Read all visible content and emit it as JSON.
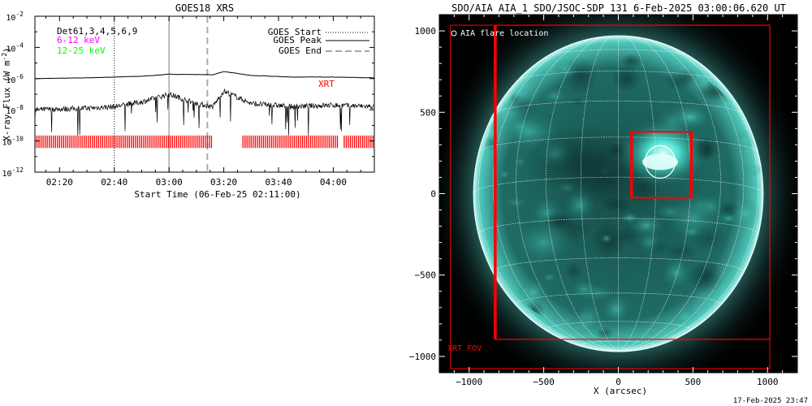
{
  "goes_panel": {
    "title": "GOES18 XRS",
    "ylabel": "X-ray Flux (W m",
    "ylabel_sup": "-2",
    "ylabel_end": ")",
    "xlabel": "Start Time (06-Feb-25 02:11:00)",
    "det_label": "Det61,3,4,5,6,9",
    "band1_label": "6-12 keV",
    "band2_label": "12-25 keV",
    "legend_start": "GOES Start",
    "legend_peak": "GOES Peak",
    "legend_end": "GOES End",
    "xrt_label": "XRT",
    "colors": {
      "band1": "#ff00ff",
      "band2": "#00ff00",
      "xrt": "#ff0000",
      "peak_line": "#aaaaaa"
    }
  },
  "aia_panel": {
    "title": "SDO/AIA AIA_1 SDO/JSOC-SDP 131  6-Feb-2025 03:00:06.620 UT",
    "legend_flare": "AIA flare location",
    "fov_label": "XRT FOV",
    "xlabel": "X (arcsec)",
    "colors": {
      "disk": "#0e3b38",
      "bright": "#33d2c4",
      "box": "#ff0000"
    }
  },
  "footer_timestamp": "17-Feb-2025 23:47",
  "chart_data": [
    {
      "type": "line",
      "title": "GOES18 XRS",
      "xlabel": "Start Time (06-Feb-25 02:11:00)",
      "ylabel": "X-ray Flux (W m-2)",
      "yscale": "log",
      "ylim_exp": [
        -12,
        -2
      ],
      "xlim_minutes_after_0200": [
        11,
        135
      ],
      "xticks": [
        {
          "min": 20,
          "label": "02:20"
        },
        {
          "min": 40,
          "label": "02:40"
        },
        {
          "min": 60,
          "label": "03:00"
        },
        {
          "min": 80,
          "label": "03:20"
        },
        {
          "min": 100,
          "label": "03:40"
        },
        {
          "min": 120,
          "label": "04:00"
        }
      ],
      "yticks": [
        {
          "exp": -2,
          "label": "10",
          "sup": "-2"
        },
        {
          "exp": -4,
          "label": "10",
          "sup": "-4"
        },
        {
          "exp": -6,
          "label": "10",
          "sup": "-6"
        },
        {
          "exp": -8,
          "label": "10",
          "sup": "-8"
        },
        {
          "exp": -10,
          "label": "10",
          "sup": "-10"
        },
        {
          "exp": -12,
          "label": "10",
          "sup": "-12"
        }
      ],
      "series": [
        {
          "name": "long",
          "min": [
            11,
            30,
            50,
            60,
            76,
            80,
            90,
            105,
            120,
            135
          ],
          "logflux": [
            -6.0,
            -5.95,
            -5.85,
            -5.72,
            -5.75,
            -5.55,
            -5.8,
            -5.9,
            -5.9,
            -5.95
          ]
        },
        {
          "name": "short",
          "min": [
            11,
            30,
            40,
            50,
            60,
            70,
            76,
            80,
            90,
            105,
            120,
            135
          ],
          "logflux": [
            -8.0,
            -7.9,
            -7.8,
            -7.5,
            -7.0,
            -7.6,
            -7.8,
            -6.8,
            -7.6,
            -7.8,
            -7.7,
            -7.8
          ]
        }
      ],
      "markers": {
        "goes_start_min": 40,
        "goes_peak_min": 60,
        "goes_end_min": 74
      },
      "xrt_coverage_min": [
        [
          11,
          76
        ],
        [
          87,
          122
        ],
        [
          124,
          135
        ]
      ],
      "grid": false
    },
    {
      "type": "image",
      "title": "SDO/AIA AIA_1 SDO/JSOC-SDP 131  6-Feb-2025 03:00:06.620 UT",
      "xlabel": "X (arcsec)",
      "xlim": [
        -1200,
        1200
      ],
      "ylim": [
        -1100,
        1100
      ],
      "xticks": [
        -1000,
        -500,
        0,
        500,
        1000
      ],
      "yticks": [
        1000,
        500,
        0,
        -500,
        -1000
      ],
      "solar_radius_arcsec": 970,
      "outer_box": {
        "x": [
          -1125,
          1015
        ],
        "y": [
          -1075,
          1035
        ]
      },
      "xrt_fov": {
        "x": [
          -825,
          1015
        ],
        "y": [
          -895,
          1035
        ]
      },
      "flare_box": {
        "x": [
          85,
          485
        ],
        "y": [
          -25,
          380
        ]
      },
      "flare_box2": {
        "x": [
          95,
          495
        ],
        "y": [
          -25,
          380
        ]
      },
      "flare_circle": {
        "x": 280,
        "y": 195,
        "r": 100
      }
    }
  ]
}
